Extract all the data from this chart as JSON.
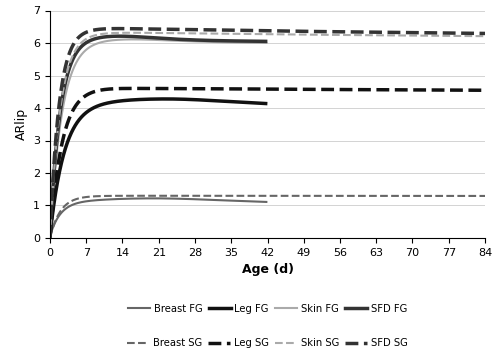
{
  "xlabel": "Age (d)",
  "ylabel": "ARlip",
  "xlim": [
    0,
    84
  ],
  "ylim": [
    0,
    7
  ],
  "xticks": [
    0,
    7,
    14,
    21,
    28,
    35,
    42,
    49,
    56,
    63,
    70,
    77,
    84
  ],
  "yticks": [
    0,
    1,
    2,
    3,
    4,
    5,
    6,
    7
  ],
  "bg_color": "#ffffff",
  "grid_color": "#cccccc",
  "series": {
    "Breast FG": {
      "color": "#666666",
      "linestyle": "solid",
      "linewidth": 1.5,
      "t_end": 42,
      "plateau": 1.05,
      "peak": 1.22,
      "t_peak": 20,
      "end_val": 1.13,
      "rise_rate": 3.5
    },
    "Leg FG": {
      "color": "#111111",
      "linestyle": "solid",
      "linewidth": 2.5,
      "t_end": 42,
      "plateau": 4.05,
      "peak": 4.28,
      "t_peak": 22,
      "end_val": 4.1,
      "rise_rate": 2.5
    },
    "Skin FG": {
      "color": "#aaaaaa",
      "linestyle": "solid",
      "linewidth": 1.5,
      "t_end": 42,
      "plateau": 6.0,
      "peak": 6.12,
      "t_peak": 14,
      "end_val": 6.0,
      "rise_rate": 3.0
    },
    "SFD FG": {
      "color": "#333333",
      "linestyle": "solid",
      "linewidth": 2.5,
      "t_end": 42,
      "plateau": 6.05,
      "peak": 6.22,
      "t_peak": 12,
      "end_val": 6.05,
      "rise_rate": 3.5
    },
    "Breast SG": {
      "color": "#666666",
      "linestyle": "dashed",
      "linewidth": 1.5,
      "t_end": 84,
      "plateau": 1.3,
      "peak": 1.3,
      "t_peak": 7,
      "end_val": 1.28,
      "rise_rate": 3.5
    },
    "Leg SG": {
      "color": "#111111",
      "linestyle": "dashed",
      "linewidth": 2.5,
      "t_end": 84,
      "plateau": 4.6,
      "peak": 4.62,
      "t_peak": 8,
      "end_val": 4.42,
      "rise_rate": 3.0
    },
    "Skin SG": {
      "color": "#aaaaaa",
      "linestyle": "dashed",
      "linewidth": 1.5,
      "t_end": 84,
      "plateau": 6.3,
      "peak": 6.32,
      "t_peak": 12,
      "end_val": 6.0,
      "rise_rate": 3.5
    },
    "SFD SG": {
      "color": "#333333",
      "linestyle": "dashed",
      "linewidth": 2.5,
      "t_end": 84,
      "plateau": 6.42,
      "peak": 6.45,
      "t_peak": 10,
      "end_val": 6.0,
      "rise_rate": 4.0
    }
  },
  "legend_row1": [
    "Breast FG",
    "Leg FG",
    "Skin FG",
    "SFD FG"
  ],
  "legend_row2": [
    "Breast SG",
    "Leg SG",
    "Skin SG",
    "SFD SG"
  ]
}
